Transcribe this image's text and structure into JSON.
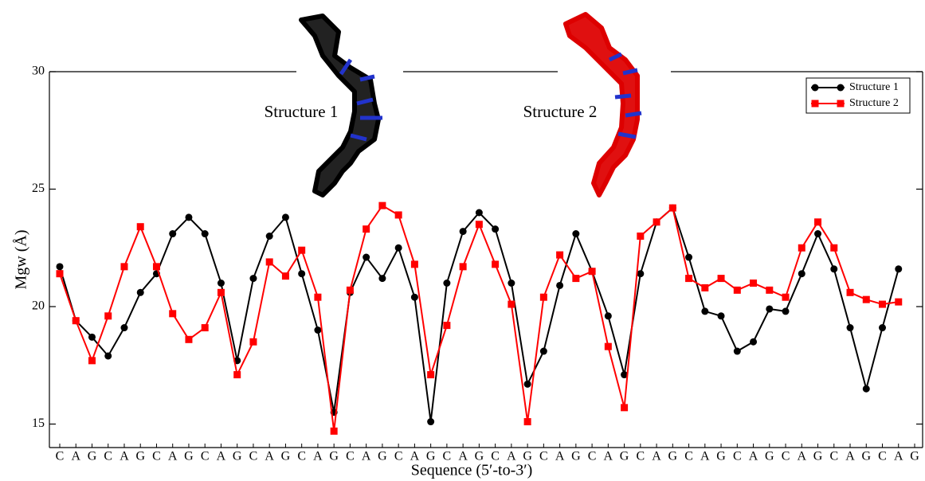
{
  "chart_data": {
    "type": "line",
    "x_label": "Sequence (5′-to-3′)",
    "y_label": "Mgw (Å)",
    "annotations": [
      "Structure 1",
      "Structure 2"
    ],
    "categories": [
      "C",
      "A",
      "G",
      "C",
      "A",
      "G",
      "C",
      "A",
      "G",
      "C",
      "A",
      "G",
      "C",
      "A",
      "G",
      "C",
      "A",
      "G",
      "C",
      "A",
      "G",
      "C",
      "A",
      "G",
      "C",
      "A",
      "G",
      "C",
      "A",
      "G",
      "C",
      "A",
      "G",
      "C",
      "A",
      "G",
      "C",
      "A",
      "G",
      "C",
      "A",
      "G",
      "C",
      "A",
      "G",
      "C",
      "A",
      "G",
      "C",
      "A",
      "G",
      "C",
      "A",
      "G"
    ],
    "ylim": [
      14,
      30
    ],
    "yticks": [
      15,
      20,
      25,
      30
    ],
    "legend": "upper-right",
    "series": [
      {
        "name": "Structure 1",
        "color": "#000000",
        "marker": "circle",
        "values": [
          21.7,
          19.4,
          18.7,
          17.9,
          19.1,
          20.6,
          21.4,
          23.1,
          23.8,
          23.1,
          21.0,
          17.7,
          21.2,
          23.0,
          23.8,
          21.4,
          19.0,
          15.5,
          20.6,
          22.1,
          21.2,
          22.5,
          20.4,
          15.1,
          21.0,
          23.2,
          24.0,
          23.3,
          21.0,
          16.7,
          18.1,
          20.9,
          23.1,
          21.5,
          19.6,
          17.1,
          21.4,
          23.6,
          24.2,
          22.1,
          19.8,
          19.6,
          18.1,
          18.5,
          19.9,
          19.8,
          21.4,
          23.1,
          21.6,
          19.1,
          16.5,
          19.1,
          21.6,
          null
        ]
      },
      {
        "name": "Structure 2",
        "color": "#ff0000",
        "marker": "square",
        "values": [
          21.4,
          19.4,
          17.7,
          19.6,
          21.7,
          23.4,
          21.7,
          19.7,
          18.6,
          19.1,
          20.6,
          17.1,
          18.5,
          21.9,
          21.3,
          22.4,
          20.4,
          14.7,
          20.7,
          23.3,
          24.3,
          23.9,
          21.8,
          17.1,
          19.2,
          21.7,
          23.5,
          21.8,
          20.1,
          15.1,
          20.4,
          22.2,
          21.2,
          21.5,
          18.3,
          15.7,
          23.0,
          23.6,
          24.2,
          21.2,
          20.8,
          21.2,
          20.7,
          21.0,
          20.7,
          20.4,
          22.5,
          23.6,
          22.5,
          20.6,
          20.3,
          20.1,
          20.2,
          null
        ]
      }
    ]
  }
}
